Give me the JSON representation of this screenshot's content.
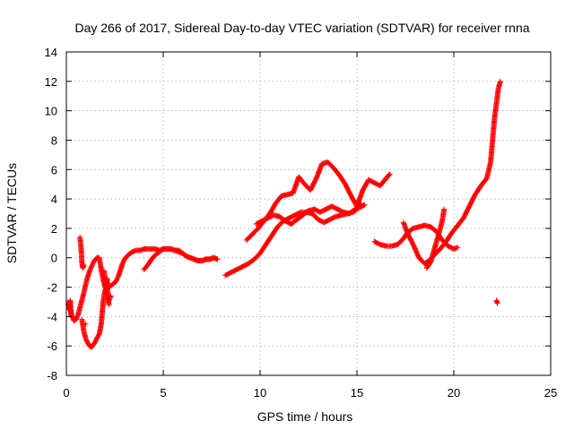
{
  "chart_data": {
    "type": "scatter",
    "title": "Day 266 of 2017, Sidereal Day-to-day VTEC variation (SDTVAR) for receiver rnna",
    "xlabel": "GPS time / hours",
    "ylabel": "SDTVAR / TECUs",
    "xlim": [
      0,
      25
    ],
    "ylim": [
      -8,
      14
    ],
    "xticks": [
      0,
      5,
      10,
      15,
      20,
      25
    ],
    "yticks": [
      -8,
      -6,
      -4,
      -2,
      0,
      2,
      4,
      6,
      8,
      10,
      12,
      14
    ],
    "grid": true,
    "marker": "plus",
    "color": "#ff0000",
    "series": [
      {
        "x": [
          0.1,
          0.2,
          0.3,
          0.4,
          0.5,
          0.6,
          0.7,
          0.8,
          0.9,
          1.0,
          1.1,
          1.2,
          1.3,
          1.4,
          1.5,
          1.6,
          1.7,
          1.8,
          1.9,
          2.0,
          2.1,
          2.2,
          2.3,
          2.4,
          2.5,
          2.6,
          2.7,
          2.8,
          2.9,
          3.0,
          3.2,
          3.4,
          3.6,
          3.8,
          4.0,
          4.2,
          4.4,
          4.6,
          4.8,
          5.0,
          5.2,
          5.4,
          5.6,
          5.8,
          6.0,
          6.2,
          6.4,
          6.6,
          6.8,
          7.0,
          7.2,
          7.4,
          7.6,
          7.8
        ],
        "y": [
          -3.2,
          -3.6,
          -4.0,
          -4.3,
          -4.2,
          -3.9,
          -3.4,
          -2.9,
          -2.4,
          -1.8,
          -1.3,
          -0.9,
          -0.6,
          -0.3,
          -0.1,
          0.0,
          0.0,
          -0.8,
          -1.5,
          -2.0,
          -2.1,
          -2.0,
          -1.9,
          -1.8,
          -1.7,
          -1.5,
          -1.2,
          -0.8,
          -0.4,
          -0.1,
          0.2,
          0.4,
          0.5,
          0.5,
          0.6,
          0.6,
          0.6,
          0.6,
          0.5,
          0.6,
          0.6,
          0.6,
          0.5,
          0.5,
          0.3,
          0.1,
          0.0,
          -0.1,
          -0.2,
          -0.2,
          -0.1,
          -0.1,
          0.0,
          -0.1
        ]
      },
      {
        "x": [
          0.8,
          0.9,
          1.0,
          1.1,
          1.2,
          1.3,
          1.4,
          1.5,
          1.6,
          1.7,
          1.8,
          1.9,
          2.0,
          2.1,
          2.2,
          2.3
        ],
        "y": [
          -4.2,
          -5.0,
          -5.5,
          -5.8,
          -6.0,
          -6.1,
          -5.9,
          -5.7,
          -5.4,
          -5.2,
          -4.5,
          -3.0,
          -2.2,
          -2.5,
          -2.9,
          -2.6
        ]
      },
      {
        "x": [
          0.1,
          0.15,
          0.2,
          0.25,
          0.7,
          0.75,
          0.78,
          0.8,
          0.85,
          0.9,
          1.0,
          1.95,
          2.0,
          2.05,
          2.1,
          2.15,
          2.2
        ],
        "y": [
          -3.0,
          -3.5,
          -2.9,
          -4.0,
          1.4,
          0.8,
          0.3,
          -0.3,
          -0.7,
          -0.5,
          -4.5,
          -0.9,
          -1.6,
          -2.4,
          -1.4,
          -2.8,
          -3.2
        ]
      },
      {
        "x": [
          4.0,
          4.2,
          4.4,
          4.6,
          4.8,
          5.0,
          5.2,
          5.4,
          5.6,
          5.8,
          6.0,
          6.2,
          6.4,
          6.6,
          6.8,
          7.0,
          7.2,
          7.4,
          7.6,
          7.8
        ],
        "y": [
          -0.8,
          -0.5,
          -0.1,
          0.2,
          0.4,
          0.6,
          0.6,
          0.6,
          0.5,
          0.4,
          0.3,
          0.1,
          0.0,
          -0.1,
          -0.2,
          -0.2,
          -0.1,
          -0.1,
          0.0,
          -0.1
        ]
      },
      {
        "x": [
          8.2,
          8.5,
          8.8,
          9.1,
          9.4,
          9.7,
          10.0,
          10.3,
          10.6,
          10.9,
          11.2,
          11.5,
          11.8,
          12.1,
          12.4,
          12.7,
          13.0,
          13.3,
          13.6,
          13.9,
          14.2,
          14.5,
          14.8,
          15.1,
          15.4
        ],
        "y": [
          -1.2,
          -1.0,
          -0.8,
          -0.6,
          -0.4,
          -0.1,
          0.3,
          0.9,
          1.5,
          2.1,
          2.5,
          2.7,
          2.9,
          3.1,
          3.1,
          3.0,
          2.6,
          2.4,
          2.6,
          2.8,
          2.9,
          3.0,
          3.1,
          3.4,
          3.6
        ]
      },
      {
        "x": [
          9.3,
          9.6,
          9.9,
          10.2,
          10.5,
          10.8,
          11.1,
          11.4,
          11.7,
          12.0,
          12.3,
          12.6,
          12.9,
          13.2,
          13.5,
          13.8,
          14.1,
          14.4,
          14.7,
          15.0,
          15.3,
          15.6,
          15.9,
          16.2,
          16.5,
          16.7
        ],
        "y": [
          1.2,
          1.6,
          2.0,
          2.5,
          3.0,
          3.7,
          4.2,
          4.3,
          4.4,
          5.5,
          5.0,
          4.6,
          5.4,
          6.4,
          6.5,
          6.1,
          5.6,
          5.0,
          4.2,
          3.5,
          4.6,
          5.3,
          5.1,
          4.9,
          5.4,
          5.7
        ]
      },
      {
        "x": [
          9.8,
          10.1,
          10.4,
          10.7,
          11.0,
          11.3,
          11.6,
          11.9,
          12.2,
          12.5,
          12.8,
          13.1,
          13.4,
          13.7,
          14.0,
          14.3,
          14.6,
          14.9,
          15.2
        ],
        "y": [
          2.3,
          2.5,
          2.7,
          2.9,
          2.8,
          2.5,
          2.3,
          2.6,
          2.9,
          3.2,
          3.3,
          3.1,
          3.3,
          3.5,
          3.3,
          3.1,
          3.0,
          3.3,
          3.7
        ]
      },
      {
        "x": [
          15.9,
          16.2,
          16.5,
          16.8,
          17.1,
          17.4,
          17.6,
          17.9,
          18.2,
          18.5,
          18.8,
          19.1,
          19.4,
          19.7,
          20.0,
          20.2
        ],
        "y": [
          1.1,
          0.9,
          0.8,
          0.8,
          0.9,
          1.3,
          1.7,
          2.0,
          2.1,
          2.2,
          2.1,
          1.8,
          1.2,
          0.8,
          0.6,
          0.7
        ]
      },
      {
        "x": [
          17.4,
          17.6,
          17.9,
          18.2,
          18.5,
          18.8,
          19.0,
          19.3,
          19.6,
          19.9,
          20.2,
          20.5,
          20.8,
          21.1,
          21.4,
          21.7,
          21.9,
          22.0,
          22.1,
          22.2,
          22.3,
          22.4
        ],
        "y": [
          2.4,
          1.7,
          0.9,
          0.0,
          -0.4,
          -0.1,
          0.2,
          0.6,
          1.1,
          1.7,
          2.2,
          2.7,
          3.5,
          4.3,
          4.9,
          5.4,
          6.5,
          8.0,
          9.5,
          10.5,
          11.5,
          12.0
        ]
      },
      {
        "x": [
          18.6,
          18.8,
          19.0,
          19.2,
          19.4,
          19.5,
          22.2,
          22.25
        ],
        "y": [
          -0.7,
          -0.3,
          0.6,
          1.5,
          2.5,
          3.3,
          -2.9,
          -3.1
        ]
      }
    ]
  }
}
